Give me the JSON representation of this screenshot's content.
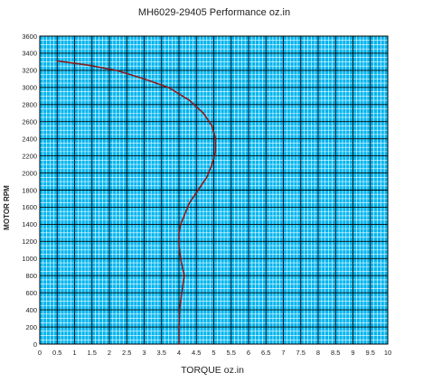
{
  "chart_data": {
    "type": "line",
    "title": "MH6029-29405  Performance oz.in",
    "xlabel": "TORQUE  oz.in",
    "ylabel": "MOTOR RPM",
    "xlim": [
      0,
      10
    ],
    "ylim": [
      0,
      3600
    ],
    "x_ticks": [
      "0",
      "0.5",
      "1",
      "1.5",
      "2",
      "2.5",
      "3",
      "3.5",
      "4",
      "4.5",
      "5",
      "5.5",
      "6",
      "6.5",
      "7",
      "7.5",
      "8",
      "8.5",
      "9",
      "9.5",
      "10"
    ],
    "y_ticks": [
      "0",
      "200",
      "400",
      "600",
      "800",
      "1000",
      "1200",
      "1400",
      "1600",
      "1800",
      "2000",
      "2200",
      "2400",
      "2600",
      "2800",
      "3000",
      "3200",
      "3400",
      "3600"
    ],
    "grid": true,
    "legend": "none",
    "colors": {
      "background": "#00b4ef",
      "grid_minor": "#ffffff",
      "grid_major": "#000000",
      "line": "#8b1a1a"
    },
    "series": [
      {
        "x": [
          4.0,
          4.0,
          4.02,
          4.05,
          4.1,
          4.15,
          4.1,
          4.05,
          4.0,
          4.0,
          4.05,
          4.15,
          4.3,
          4.55,
          4.8,
          4.95,
          5.05,
          5.05,
          4.95,
          4.7,
          4.3,
          3.7,
          3.0,
          2.2,
          1.4,
          0.5
        ],
        "y": [
          0,
          200,
          400,
          500,
          650,
          800,
          900,
          1000,
          1150,
          1300,
          1400,
          1500,
          1650,
          1800,
          1950,
          2100,
          2250,
          2400,
          2550,
          2700,
          2850,
          3000,
          3100,
          3200,
          3260,
          3310
        ]
      }
    ]
  }
}
